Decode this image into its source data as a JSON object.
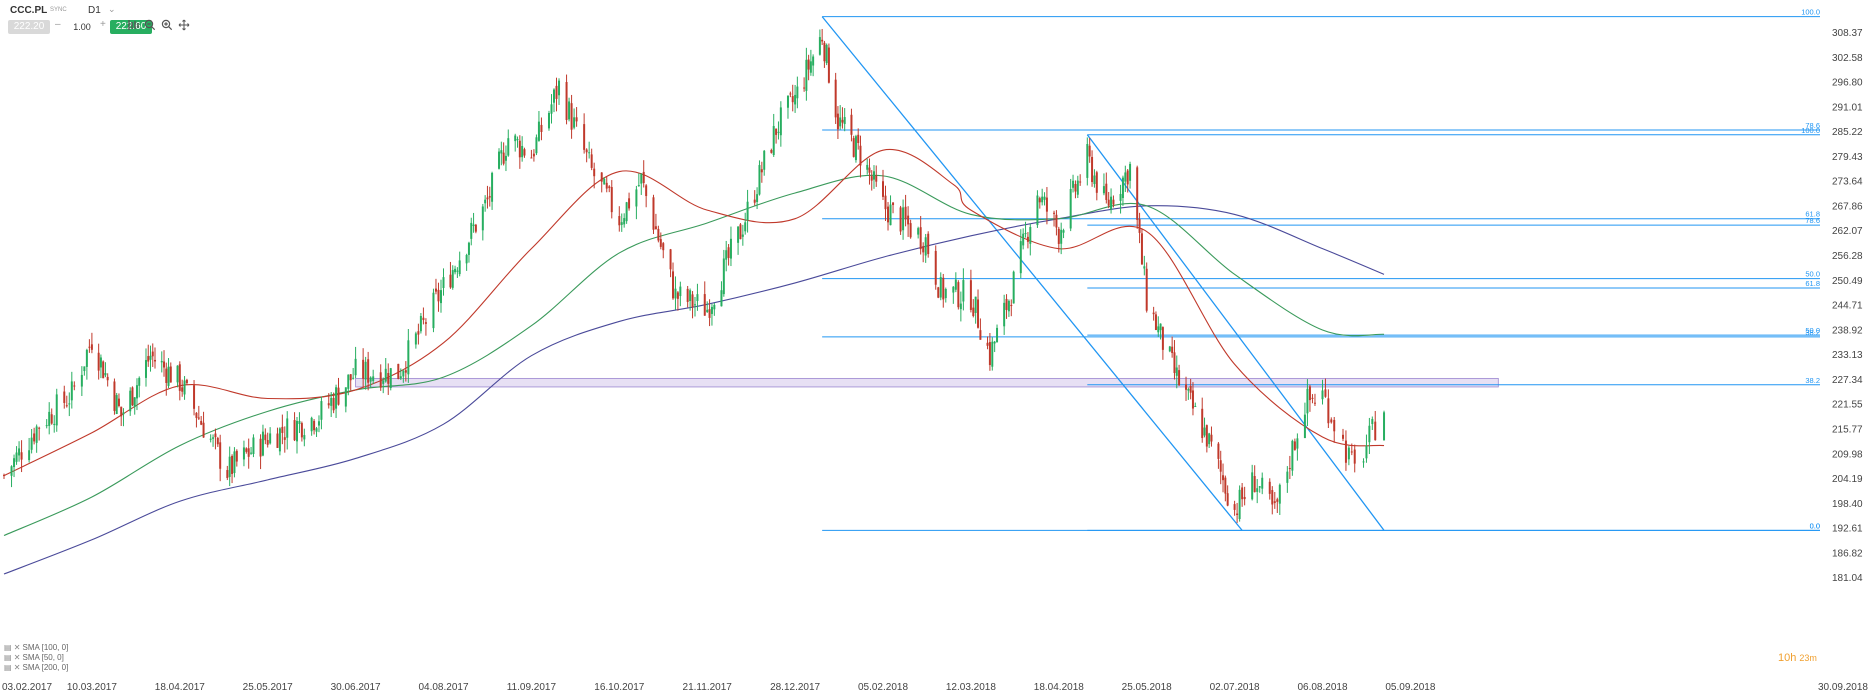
{
  "toolbar": {
    "symbol": "CCC.PL",
    "sync": "SYNC",
    "timeframe": "D1",
    "bid": "222.20",
    "quantity": "1.00",
    "ask": "222.60",
    "icons": [
      "chart-type-icon",
      "zoom-out-icon",
      "zoom-in-icon",
      "move-icon"
    ]
  },
  "legend": [
    {
      "label": "SMA [100, 0]",
      "color": "#3a9a5b"
    },
    {
      "label": "SMA [50, 0]",
      "color": "#c0392b"
    },
    {
      "label": "SMA [200, 0]",
      "color": "#4a4a9a"
    }
  ],
  "timer": {
    "hours": "10h",
    "minutes": "23m"
  },
  "chart_data": {
    "type": "candlestick",
    "symbol": "CCC.PL",
    "timeframe": "D1",
    "y_ticks": [
      "308.37",
      "302.58",
      "296.80",
      "291.01",
      "285.22",
      "279.43",
      "273.64",
      "267.86",
      "262.07",
      "256.28",
      "250.49",
      "244.71",
      "238.92",
      "233.13",
      "227.34",
      "221.55",
      "215.77",
      "209.98",
      "204.19",
      "198.40",
      "192.61",
      "186.82",
      "181.04"
    ],
    "x_ticks": [
      "03.02.2017",
      "10.03.2017",
      "18.04.2017",
      "25.05.2017",
      "30.06.2017",
      "04.08.2017",
      "11.09.2017",
      "16.10.2017",
      "21.11.2017",
      "28.12.2017",
      "05.02.2018",
      "12.03.2018",
      "18.04.2018",
      "25.05.2018",
      "02.07.2018",
      "06.08.2018",
      "05.09.2018",
      "30.09.2018"
    ],
    "ylim": [
      181.04,
      312.5
    ],
    "colors": {
      "up": "#27ae60",
      "down": "#c0392b",
      "fib": "#2196f3",
      "sma50": "#c0392b",
      "sma100": "#3a9a5b",
      "sma200": "#4a4a9a",
      "zone": "#b9a7e0"
    },
    "keypoints": [
      {
        "d": "03.02.2017",
        "v": 205
      },
      {
        "d": "17.02.2017",
        "v": 217
      },
      {
        "d": "02.03.2017",
        "v": 224
      },
      {
        "d": "10.03.2017",
        "v": 237
      },
      {
        "d": "23.03.2017",
        "v": 219
      },
      {
        "d": "05.04.2017",
        "v": 233
      },
      {
        "d": "18.04.2017",
        "v": 227
      },
      {
        "d": "08.05.2017",
        "v": 206
      },
      {
        "d": "25.05.2017",
        "v": 214
      },
      {
        "d": "15.06.2017",
        "v": 219
      },
      {
        "d": "30.06.2017",
        "v": 229
      },
      {
        "d": "17.07.2017",
        "v": 229
      },
      {
        "d": "04.08.2017",
        "v": 249
      },
      {
        "d": "23.08.2017",
        "v": 269
      },
      {
        "d": "01.09.2017",
        "v": 284
      },
      {
        "d": "11.09.2017",
        "v": 280
      },
      {
        "d": "22.09.2017",
        "v": 296
      },
      {
        "d": "05.10.2017",
        "v": 276
      },
      {
        "d": "16.10.2017",
        "v": 265
      },
      {
        "d": "25.10.2017",
        "v": 274
      },
      {
        "d": "08.11.2017",
        "v": 247
      },
      {
        "d": "21.11.2017",
        "v": 244
      },
      {
        "d": "05.12.2017",
        "v": 262
      },
      {
        "d": "20.12.2017",
        "v": 286
      },
      {
        "d": "28.12.2017",
        "v": 293
      },
      {
        "d": "09.01.2018",
        "v": 308
      },
      {
        "d": "16.01.2018",
        "v": 288
      },
      {
        "d": "26.01.2018",
        "v": 280
      },
      {
        "d": "05.02.2018",
        "v": 268
      },
      {
        "d": "22.02.2018",
        "v": 260
      },
      {
        "d": "28.02.2018",
        "v": 248
      },
      {
        "d": "12.03.2018",
        "v": 247
      },
      {
        "d": "20.03.2018",
        "v": 233
      },
      {
        "d": "29.03.2018",
        "v": 248
      },
      {
        "d": "09.04.2018",
        "v": 271
      },
      {
        "d": "18.04.2018",
        "v": 262
      },
      {
        "d": "30.04.2018",
        "v": 279
      },
      {
        "d": "08.05.2018",
        "v": 268
      },
      {
        "d": "18.05.2018",
        "v": 277
      },
      {
        "d": "25.05.2018",
        "v": 246
      },
      {
        "d": "06.06.2018",
        "v": 229
      },
      {
        "d": "20.06.2018",
        "v": 214
      },
      {
        "d": "02.07.2018",
        "v": 197
      },
      {
        "d": "10.07.2018",
        "v": 204
      },
      {
        "d": "18.07.2018",
        "v": 196
      },
      {
        "d": "30.07.2018",
        "v": 222
      },
      {
        "d": "06.08.2018",
        "v": 224
      },
      {
        "d": "17.08.2018",
        "v": 206
      },
      {
        "d": "27.08.2018",
        "v": 221
      }
    ],
    "sma50": [
      {
        "d": "03.02.2017",
        "v": 205
      },
      {
        "d": "10.03.2017",
        "v": 215
      },
      {
        "d": "18.04.2017",
        "v": 226
      },
      {
        "d": "25.05.2017",
        "v": 223
      },
      {
        "d": "30.06.2017",
        "v": 225
      },
      {
        "d": "04.08.2017",
        "v": 236
      },
      {
        "d": "11.09.2017",
        "v": 258
      },
      {
        "d": "16.10.2017",
        "v": 276
      },
      {
        "d": "21.11.2017",
        "v": 267
      },
      {
        "d": "28.12.2017",
        "v": 265
      },
      {
        "d": "05.02.2018",
        "v": 281
      },
      {
        "d": "05.03.2018",
        "v": 273
      },
      {
        "d": "12.03.2018",
        "v": 267
      },
      {
        "d": "18.04.2018",
        "v": 258
      },
      {
        "d": "25.05.2018",
        "v": 262
      },
      {
        "d": "02.07.2018",
        "v": 231
      },
      {
        "d": "06.08.2018",
        "v": 214
      },
      {
        "d": "27.08.2018",
        "v": 212
      }
    ],
    "sma100": [
      {
        "d": "03.02.2017",
        "v": 191
      },
      {
        "d": "10.03.2017",
        "v": 200
      },
      {
        "d": "18.04.2017",
        "v": 212
      },
      {
        "d": "25.05.2017",
        "v": 220
      },
      {
        "d": "30.06.2017",
        "v": 225
      },
      {
        "d": "04.08.2017",
        "v": 228
      },
      {
        "d": "11.09.2017",
        "v": 240
      },
      {
        "d": "16.10.2017",
        "v": 257
      },
      {
        "d": "21.11.2017",
        "v": 264
      },
      {
        "d": "28.12.2017",
        "v": 271
      },
      {
        "d": "05.02.2018",
        "v": 275
      },
      {
        "d": "12.03.2018",
        "v": 266
      },
      {
        "d": "18.04.2018",
        "v": 265
      },
      {
        "d": "25.05.2018",
        "v": 268
      },
      {
        "d": "02.07.2018",
        "v": 252
      },
      {
        "d": "06.08.2018",
        "v": 239
      },
      {
        "d": "27.08.2018",
        "v": 238
      }
    ],
    "sma200": [
      {
        "d": "03.02.2017",
        "v": 182
      },
      {
        "d": "10.03.2017",
        "v": 190
      },
      {
        "d": "18.04.2017",
        "v": 199
      },
      {
        "d": "25.05.2017",
        "v": 204
      },
      {
        "d": "30.06.2017",
        "v": 209
      },
      {
        "d": "04.08.2017",
        "v": 217
      },
      {
        "d": "11.09.2017",
        "v": 233
      },
      {
        "d": "16.10.2017",
        "v": 241
      },
      {
        "d": "21.11.2017",
        "v": 245
      },
      {
        "d": "28.12.2017",
        "v": 250
      },
      {
        "d": "05.02.2018",
        "v": 256
      },
      {
        "d": "12.03.2018",
        "v": 261
      },
      {
        "d": "18.04.2018",
        "v": 265
      },
      {
        "d": "25.05.2018",
        "v": 268
      },
      {
        "d": "02.07.2018",
        "v": 266
      },
      {
        "d": "06.08.2018",
        "v": 258
      },
      {
        "d": "27.08.2018",
        "v": 252
      }
    ],
    "fib_sets": [
      {
        "start": "09.01.2018",
        "end": "30.09.2018",
        "levels": [
          {
            "label": "100.0",
            "v": 312.2
          },
          {
            "label": "78.6",
            "v": 285.7
          },
          {
            "label": "61.8",
            "v": 265.0
          },
          {
            "label": "50.0",
            "v": 251.0
          },
          {
            "label": "38.2",
            "v": 237.4
          },
          {
            "label": "0.0",
            "v": 192.2
          }
        ]
      },
      {
        "start": "30.04.2018",
        "end": "30.09.2018",
        "levels": [
          {
            "label": "100.0",
            "v": 284.6
          },
          {
            "label": "78.6",
            "v": 263.5
          },
          {
            "label": "61.8",
            "v": 248.8
          },
          {
            "label": "50.0",
            "v": 237.8
          },
          {
            "label": "38.2",
            "v": 226.2
          },
          {
            "label": "0.0",
            "v": 192.2
          }
        ]
      }
    ],
    "trendlines": [
      {
        "from": {
          "d": "09.01.2018",
          "v": 312.2
        },
        "to": {
          "d": "05.07.2018",
          "v": 192.2
        }
      },
      {
        "from": {
          "d": "30.04.2018",
          "v": 284.6
        },
        "to": {
          "d": "27.08.2018",
          "v": 192.2
        }
      }
    ],
    "zone": {
      "from": "30.06.2017",
      "to": "30.09.2018",
      "top": 227.7,
      "bottom": 225.7
    }
  }
}
